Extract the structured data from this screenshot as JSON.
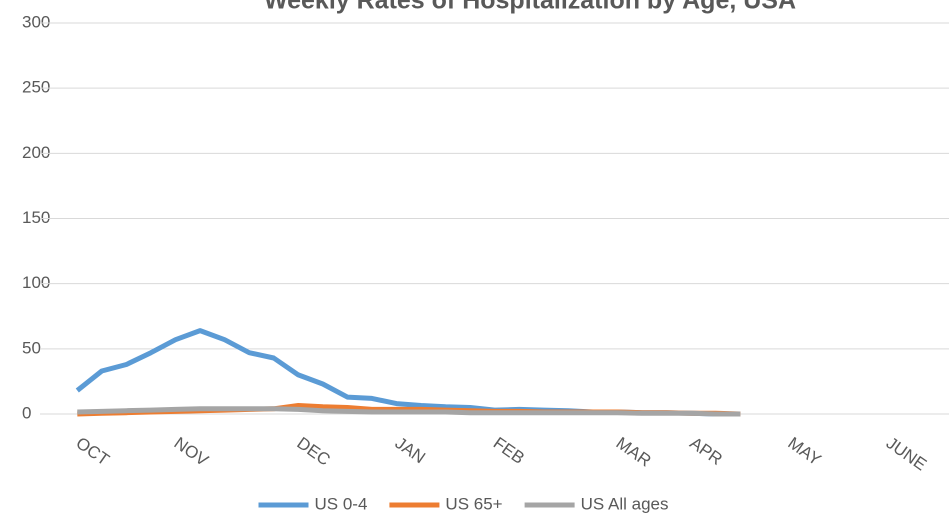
{
  "chart_data": {
    "type": "line",
    "title": "Weekly Rates of Hospitalization by Age, USA",
    "categories": [
      "OCT",
      null,
      null,
      null,
      "NOV",
      null,
      null,
      null,
      null,
      "DEC",
      null,
      null,
      null,
      "JAN",
      null,
      null,
      null,
      "FEB",
      null,
      null,
      null,
      null,
      "MAR",
      null,
      null,
      "APR",
      null,
      null,
      null,
      "MAY",
      null,
      null,
      null,
      "JUNE",
      null,
      null
    ],
    "series": [
      {
        "name": "US 0-4",
        "color": "#5b9bd5",
        "values": [
          18,
          33,
          38,
          47,
          57,
          64,
          57,
          47,
          43,
          30,
          23,
          13,
          12,
          8,
          6.5,
          5.5,
          5,
          3,
          3.5,
          3,
          2.5,
          1.5,
          1.5,
          1,
          1,
          0.5,
          0,
          0,
          null,
          null,
          null,
          null,
          null,
          null,
          null,
          null
        ]
      },
      {
        "name": "US 65+",
        "color": "#ed7d31",
        "values": [
          0,
          0.5,
          1,
          1.5,
          2,
          2.5,
          3,
          3.5,
          4,
          6.5,
          5.5,
          5,
          3.5,
          3.5,
          3.5,
          3,
          2.5,
          2,
          2,
          1.5,
          1.5,
          1.5,
          1.5,
          1,
          1,
          0.5,
          0.5,
          0,
          null,
          null,
          null,
          null,
          null,
          null,
          null,
          null
        ]
      },
      {
        "name": "US All ages",
        "color": "#a5a5a5",
        "values": [
          1.5,
          2,
          2.5,
          3,
          3.5,
          4,
          4,
          4,
          4,
          3.5,
          2.5,
          2,
          1.5,
          1.5,
          1.5,
          1.5,
          1,
          1,
          1,
          1,
          1,
          1,
          1,
          0.5,
          0.5,
          0.5,
          0,
          0,
          null,
          null,
          null,
          null,
          null,
          null,
          null,
          null
        ]
      }
    ],
    "ylim": [
      0,
      300
    ],
    "yticks": [
      0,
      50,
      100,
      150,
      200,
      250,
      300
    ],
    "grid": true,
    "legend": "bottom"
  }
}
